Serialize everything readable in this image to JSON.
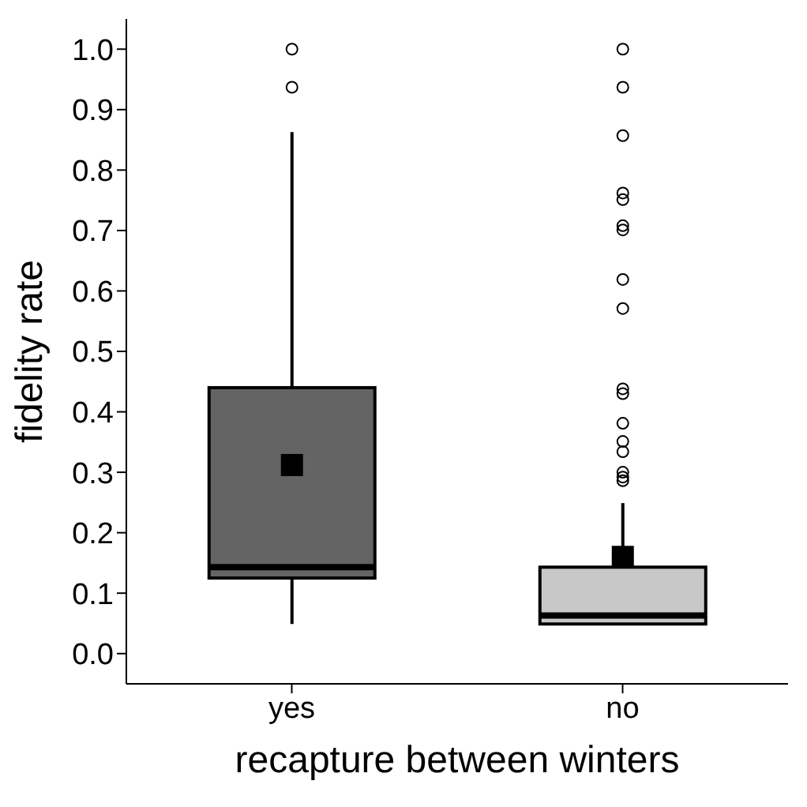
{
  "chart_data": {
    "type": "box",
    "xlabel": "recapture between winters",
    "ylabel": "fidelity rate",
    "categories": [
      "yes",
      "no"
    ],
    "colors": [
      "#646464",
      "#c8c8c8"
    ],
    "boxes": [
      {
        "low": 0.049,
        "q1": 0.125,
        "median": 0.143,
        "q3": 0.44,
        "high": 0.863,
        "mean": 0.312,
        "outliers": [
          1.0,
          0.937
        ]
      },
      {
        "low": 0.049,
        "q1": 0.049,
        "median": 0.063,
        "q3": 0.143,
        "high": 0.249,
        "mean": 0.16,
        "outliers": [
          1.0,
          0.937,
          0.857,
          0.762,
          0.751,
          0.708,
          0.701,
          0.619,
          0.571,
          0.438,
          0.43,
          0.381,
          0.351,
          0.334,
          0.3,
          0.292,
          0.286
        ]
      }
    ],
    "ylim": [
      -0.05,
      1.05
    ],
    "yticks": [
      {
        "value": 0,
        "label": "0.0"
      },
      0.1,
      0.2,
      0.3,
      0.4,
      0.5,
      0.6,
      0.7,
      0.8,
      0.9,
      {
        "value": 1,
        "label": "1.0"
      }
    ]
  }
}
